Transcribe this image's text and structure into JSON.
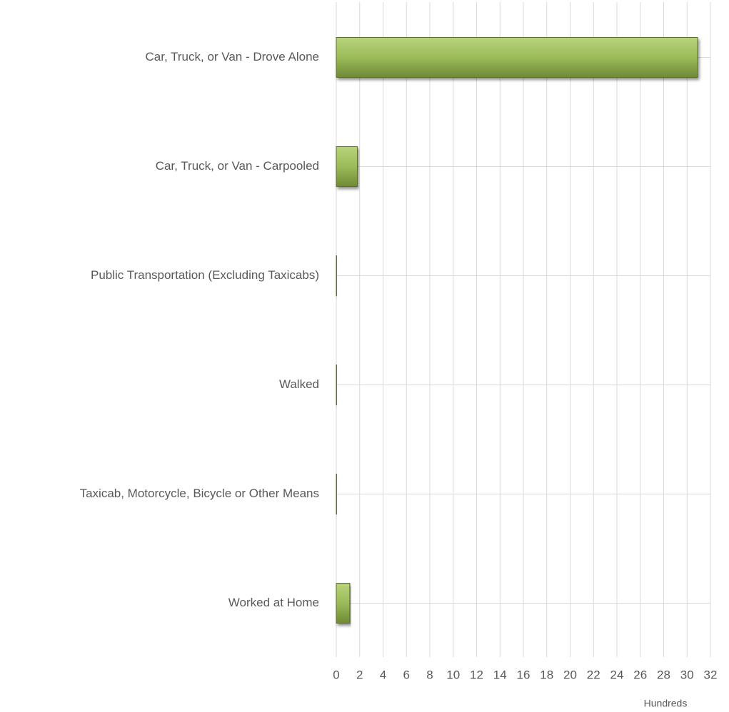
{
  "chart_data": {
    "type": "hbar",
    "categories": [
      "Car, Truck, or Van - Drove Alone",
      "Car, Truck, or Van - Carpooled",
      "Public Transportation (Excluding Taxicabs)",
      "Walked",
      "Taxicab, Motorcycle, Bicycle or Other Means",
      "Worked at Home"
    ],
    "values": [
      30.9,
      1.8,
      0.05,
      0.02,
      0.05,
      1.15
    ],
    "color": "#9bbb59",
    "xlim": [
      0,
      32
    ],
    "xticks": [
      0,
      2,
      4,
      6,
      8,
      10,
      12,
      14,
      16,
      18,
      20,
      22,
      24,
      26,
      28,
      30,
      32
    ],
    "xlabel": "Hundreds",
    "grid": true
  }
}
